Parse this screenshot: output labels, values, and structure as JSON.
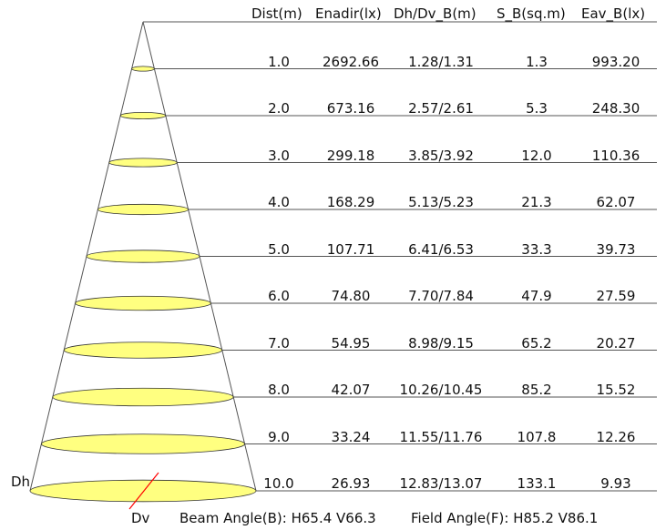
{
  "headers": {
    "dist": "Dist(m)",
    "enadir": "Enadir(lx)",
    "dhdv": "Dh/Dv_B(m)",
    "sb": "S_B(sq.m)",
    "eav": "Eav_B(lx)"
  },
  "rows": [
    {
      "dist": "1.0",
      "enadir": "2692.66",
      "dhdv": "1.28/1.31",
      "sb": "1.3",
      "eav": "993.20"
    },
    {
      "dist": "2.0",
      "enadir": "673.16",
      "dhdv": "2.57/2.61",
      "sb": "5.3",
      "eav": "248.30"
    },
    {
      "dist": "3.0",
      "enadir": "299.18",
      "dhdv": "3.85/3.92",
      "sb": "12.0",
      "eav": "110.36"
    },
    {
      "dist": "4.0",
      "enadir": "168.29",
      "dhdv": "5.13/5.23",
      "sb": "21.3",
      "eav": "62.07"
    },
    {
      "dist": "5.0",
      "enadir": "107.71",
      "dhdv": "6.41/6.53",
      "sb": "33.3",
      "eav": "39.73"
    },
    {
      "dist": "6.0",
      "enadir": "74.80",
      "dhdv": "7.70/7.84",
      "sb": "47.9",
      "eav": "27.59"
    },
    {
      "dist": "7.0",
      "enadir": "54.95",
      "dhdv": "8.98/9.15",
      "sb": "65.2",
      "eav": "20.27"
    },
    {
      "dist": "8.0",
      "enadir": "42.07",
      "dhdv": "10.26/10.45",
      "sb": "85.2",
      "eav": "15.52"
    },
    {
      "dist": "9.0",
      "enadir": "33.24",
      "dhdv": "11.55/11.76",
      "sb": "107.8",
      "eav": "12.26"
    },
    {
      "dist": "10.0",
      "enadir": "26.93",
      "dhdv": "12.83/13.07",
      "sb": "133.1",
      "eav": "9.93"
    }
  ],
  "labels": {
    "dh": "Dh",
    "dv": "Dv",
    "beam_angle": "Beam Angle(B): H65.4 V66.3",
    "field_angle": "Field Angle(F): H85.2 V86.1"
  },
  "colors": {
    "ellipse_fill": "#ffff80",
    "ellipse_stroke": "#333333",
    "line": "#555555",
    "dim_line": "#ff0000"
  }
}
